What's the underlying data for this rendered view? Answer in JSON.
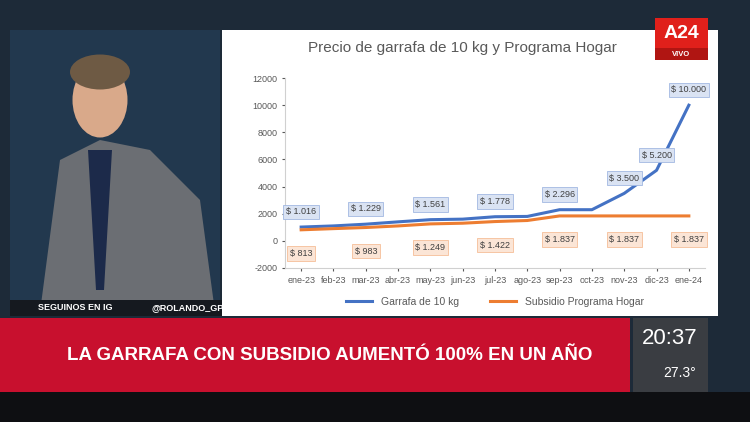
{
  "chart_data": {
    "type": "line",
    "title": "Precio de garrafa de 10 kg y Programa Hogar",
    "categories": [
      "ene-23",
      "feb-23",
      "mar-23",
      "abr-23",
      "may-23",
      "jun-23",
      "jul-23",
      "ago-23",
      "sep-23",
      "oct-23",
      "nov-23",
      "dic-23",
      "ene-24"
    ],
    "series": [
      {
        "name": "Garrafa de 10 kg",
        "color": "#4472c4",
        "values": [
          1016,
          1100,
          1229,
          1400,
          1561,
          1600,
          1778,
          1800,
          2296,
          2296,
          3500,
          5200,
          10000
        ],
        "value_labels": [
          "$ 1.016",
          null,
          "$ 1.229",
          null,
          "$ 1.561",
          null,
          "$ 1.778",
          null,
          "$ 2.296",
          null,
          "$ 3.500",
          "$ 5.200",
          "$ 10.000"
        ]
      },
      {
        "name": "Subsidio Programa Hogar",
        "color": "#ed7d31",
        "values": [
          813,
          900,
          983,
          1100,
          1249,
          1300,
          1422,
          1500,
          1837,
          1837,
          1837,
          1837,
          1837
        ],
        "value_labels": [
          "$ 813",
          null,
          "$ 983",
          null,
          "$ 1.249",
          null,
          "$ 1.422",
          null,
          "$ 1.837",
          null,
          "$ 1.837",
          null,
          "$ 1.837"
        ]
      }
    ],
    "ylim": [
      -2000,
      12000
    ],
    "yticks": [
      -2000,
      0,
      2000,
      4000,
      6000,
      8000,
      10000,
      12000
    ],
    "grid": false,
    "legend": "lower center",
    "data_labels": true
  },
  "broadcast": {
    "channel": "A24",
    "live": "VIVO",
    "social": "SEGUINOS EN IG",
    "handle": "@ROLANDO_GPS",
    "headline": "LA GARRAFA CON SUBSIDIO AUMENTÓ 100% EN UN AÑO",
    "time": "20:37",
    "temperature": "27.3°"
  }
}
